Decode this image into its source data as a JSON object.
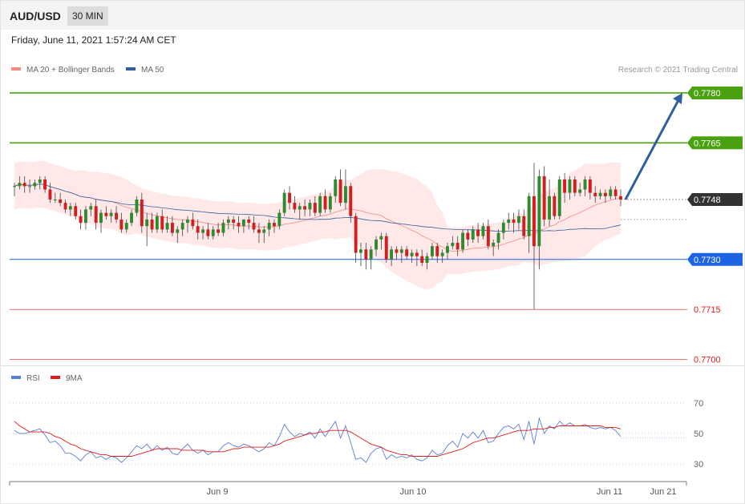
{
  "header": {
    "symbol": "AUD/USD",
    "timeframe": "30 MIN"
  },
  "datetime": "Friday, June 11, 2021 1:57:24 AM CET",
  "legend": {
    "ma20_label": "MA 20 + Bollinger Bands",
    "ma20_color": "#f28b82",
    "ma50_label": "MA 50",
    "ma50_color": "#34609e"
  },
  "credit": "Research © 2021 Trading Central",
  "rsi_legend": {
    "rsi_label": "RSI",
    "rsi_color": "#5b7fd6",
    "ma_label": "9MA",
    "ma_color": "#e11b1b"
  },
  "chart_data": [
    {
      "type": "candlestick",
      "panel": "price",
      "ylim": [
        0.7697,
        0.7786
      ],
      "levels": [
        {
          "value": 0.778,
          "label": "0.7780",
          "color": "#4aa10f",
          "style": "resistance"
        },
        {
          "value": 0.7765,
          "label": "0.7765",
          "color": "#4aa10f",
          "style": "resistance"
        },
        {
          "value": 0.7748,
          "label": "0.7748",
          "color": "#333333",
          "style": "last"
        },
        {
          "value": 0.773,
          "label": "0.7730",
          "color": "#1d63e4",
          "style": "pivot"
        },
        {
          "value": 0.7715,
          "label": "0.7715",
          "color": "#e31b1b",
          "style": "support"
        },
        {
          "value": 0.77,
          "label": "0.7700",
          "color": "#e31b1b",
          "style": "support"
        }
      ],
      "forecast_arrow": {
        "from": 0.7748,
        "to": 0.778,
        "color": "#2f5f9e"
      },
      "candles": [
        [
          0.7752,
          0.7753,
          0.7749,
          0.7752
        ],
        [
          0.7752,
          0.7755,
          0.7751,
          0.7753
        ],
        [
          0.7753,
          0.7755,
          0.775,
          0.7752
        ],
        [
          0.7752,
          0.7754,
          0.775,
          0.7752
        ],
        [
          0.7752,
          0.7754,
          0.7751,
          0.7753
        ],
        [
          0.7753,
          0.7755,
          0.7751,
          0.7754
        ],
        [
          0.7754,
          0.7755,
          0.775,
          0.7751
        ],
        [
          0.7751,
          0.7753,
          0.7747,
          0.7748
        ],
        [
          0.7748,
          0.775,
          0.7747,
          0.7748
        ],
        [
          0.7748,
          0.775,
          0.7746,
          0.7747
        ],
        [
          0.7747,
          0.7748,
          0.7744,
          0.7745
        ],
        [
          0.7745,
          0.7747,
          0.7743,
          0.7746
        ],
        [
          0.7746,
          0.7747,
          0.7742,
          0.7743
        ],
        [
          0.7743,
          0.7745,
          0.7739,
          0.7741
        ],
        [
          0.7741,
          0.7746,
          0.7739,
          0.7745
        ],
        [
          0.7745,
          0.7747,
          0.7743,
          0.7746
        ],
        [
          0.7746,
          0.7748,
          0.7739,
          0.7741
        ],
        [
          0.7741,
          0.7745,
          0.7738,
          0.7744
        ],
        [
          0.7744,
          0.7746,
          0.7742,
          0.7743
        ],
        [
          0.7743,
          0.7745,
          0.7741,
          0.7744
        ],
        [
          0.7744,
          0.7746,
          0.7741,
          0.7742
        ],
        [
          0.7742,
          0.7744,
          0.7738,
          0.7739
        ],
        [
          0.7739,
          0.7742,
          0.7738,
          0.7741
        ],
        [
          0.7741,
          0.7745,
          0.774,
          0.7744
        ],
        [
          0.7744,
          0.7749,
          0.7743,
          0.7748
        ],
        [
          0.7748,
          0.775,
          0.7738,
          0.774
        ],
        [
          0.774,
          0.7744,
          0.7734,
          0.7742
        ],
        [
          0.7742,
          0.7744,
          0.7738,
          0.7739
        ],
        [
          0.7739,
          0.7744,
          0.7738,
          0.7743
        ],
        [
          0.7743,
          0.7745,
          0.7738,
          0.7739
        ],
        [
          0.7739,
          0.7743,
          0.7738,
          0.7741
        ],
        [
          0.7741,
          0.7743,
          0.7737,
          0.7738
        ],
        [
          0.7738,
          0.774,
          0.7735,
          0.7739
        ],
        [
          0.7739,
          0.7742,
          0.7737,
          0.7741
        ],
        [
          0.7741,
          0.7743,
          0.7738,
          0.7742
        ],
        [
          0.7742,
          0.7744,
          0.7739,
          0.774
        ],
        [
          0.774,
          0.7742,
          0.7736,
          0.7738
        ],
        [
          0.7738,
          0.774,
          0.7736,
          0.7739
        ],
        [
          0.7739,
          0.7741,
          0.7736,
          0.7737
        ],
        [
          0.7737,
          0.774,
          0.7736,
          0.7739
        ],
        [
          0.7739,
          0.7741,
          0.7737,
          0.7738
        ],
        [
          0.7738,
          0.7742,
          0.7737,
          0.7741
        ],
        [
          0.7741,
          0.7743,
          0.7739,
          0.7742
        ],
        [
          0.7742,
          0.7743,
          0.7739,
          0.7741
        ],
        [
          0.7741,
          0.7743,
          0.7738,
          0.774
        ],
        [
          0.774,
          0.7742,
          0.7738,
          0.7742
        ],
        [
          0.7742,
          0.7743,
          0.7739,
          0.7741
        ],
        [
          0.7741,
          0.7743,
          0.7738,
          0.7739
        ],
        [
          0.7739,
          0.7741,
          0.7735,
          0.7738
        ],
        [
          0.7738,
          0.774,
          0.7735,
          0.7739
        ],
        [
          0.7739,
          0.7742,
          0.7737,
          0.7741
        ],
        [
          0.7741,
          0.7742,
          0.7738,
          0.774
        ],
        [
          0.774,
          0.7745,
          0.7739,
          0.7744
        ],
        [
          0.7744,
          0.7751,
          0.7743,
          0.775
        ],
        [
          0.775,
          0.7752,
          0.7745,
          0.7747
        ],
        [
          0.7747,
          0.7749,
          0.7744,
          0.7745
        ],
        [
          0.7745,
          0.7747,
          0.7742,
          0.7746
        ],
        [
          0.7746,
          0.7748,
          0.7743,
          0.7745
        ],
        [
          0.7745,
          0.7748,
          0.7743,
          0.7747
        ],
        [
          0.7747,
          0.7749,
          0.7743,
          0.7744
        ],
        [
          0.7744,
          0.775,
          0.7743,
          0.7749
        ],
        [
          0.7749,
          0.7751,
          0.7744,
          0.7745
        ],
        [
          0.7745,
          0.775,
          0.7744,
          0.7749
        ],
        [
          0.7749,
          0.7755,
          0.7747,
          0.7754
        ],
        [
          0.7754,
          0.7757,
          0.7746,
          0.7747
        ],
        [
          0.7747,
          0.7757,
          0.7745,
          0.7752
        ],
        [
          0.7752,
          0.7753,
          0.7741,
          0.7743
        ],
        [
          0.7743,
          0.7744,
          0.7729,
          0.7732
        ],
        [
          0.7732,
          0.7735,
          0.7728,
          0.7733
        ],
        [
          0.7733,
          0.7735,
          0.7727,
          0.773
        ],
        [
          0.773,
          0.7734,
          0.7727,
          0.7733
        ],
        [
          0.7733,
          0.7737,
          0.7731,
          0.7736
        ],
        [
          0.7736,
          0.7738,
          0.7733,
          0.7737
        ],
        [
          0.7737,
          0.7738,
          0.7729,
          0.773
        ],
        [
          0.773,
          0.7734,
          0.7728,
          0.7733
        ],
        [
          0.7733,
          0.7734,
          0.773,
          0.7732
        ],
        [
          0.7732,
          0.7734,
          0.7729,
          0.7733
        ],
        [
          0.7733,
          0.7734,
          0.773,
          0.7731
        ],
        [
          0.7731,
          0.7733,
          0.7729,
          0.7732
        ],
        [
          0.7732,
          0.7733,
          0.7728,
          0.7731
        ],
        [
          0.7731,
          0.7733,
          0.7728,
          0.7729
        ],
        [
          0.7729,
          0.7732,
          0.7727,
          0.7731
        ],
        [
          0.7731,
          0.7735,
          0.773,
          0.7734
        ],
        [
          0.7734,
          0.7735,
          0.7729,
          0.7731
        ],
        [
          0.7731,
          0.7733,
          0.7729,
          0.7732
        ],
        [
          0.7732,
          0.7735,
          0.773,
          0.7734
        ],
        [
          0.7734,
          0.7737,
          0.7733,
          0.7735
        ],
        [
          0.7735,
          0.7737,
          0.7731,
          0.7733
        ],
        [
          0.7733,
          0.7739,
          0.7732,
          0.7738
        ],
        [
          0.7738,
          0.7739,
          0.7734,
          0.7736
        ],
        [
          0.7736,
          0.774,
          0.7735,
          0.7739
        ],
        [
          0.7739,
          0.7741,
          0.7735,
          0.7737
        ],
        [
          0.7737,
          0.7741,
          0.7736,
          0.774
        ],
        [
          0.774,
          0.7742,
          0.7733,
          0.7734
        ],
        [
          0.7734,
          0.7736,
          0.7731,
          0.7735
        ],
        [
          0.7735,
          0.7739,
          0.7733,
          0.7738
        ],
        [
          0.7738,
          0.7742,
          0.7736,
          0.7741
        ],
        [
          0.7741,
          0.7744,
          0.7739,
          0.7742
        ],
        [
          0.7742,
          0.7744,
          0.7738,
          0.7741
        ],
        [
          0.7741,
          0.7745,
          0.7739,
          0.7743
        ],
        [
          0.7743,
          0.7745,
          0.7736,
          0.7737
        ],
        [
          0.7737,
          0.775,
          0.7732,
          0.7749
        ],
        [
          0.7749,
          0.7759,
          0.7715,
          0.7734
        ],
        [
          0.7734,
          0.7757,
          0.7727,
          0.7755
        ],
        [
          0.7755,
          0.7758,
          0.774,
          0.7742
        ],
        [
          0.7742,
          0.7754,
          0.774,
          0.7749
        ],
        [
          0.7749,
          0.775,
          0.7742,
          0.7743
        ],
        [
          0.7743,
          0.7755,
          0.7742,
          0.7754
        ],
        [
          0.7754,
          0.7756,
          0.7747,
          0.775
        ],
        [
          0.775,
          0.7755,
          0.7748,
          0.7754
        ],
        [
          0.7754,
          0.7755,
          0.7749,
          0.775
        ],
        [
          0.775,
          0.7753,
          0.7749,
          0.7751
        ],
        [
          0.7751,
          0.7755,
          0.7749,
          0.7754
        ],
        [
          0.7754,
          0.7755,
          0.7748,
          0.775
        ],
        [
          0.775,
          0.7752,
          0.7747,
          0.7749
        ],
        [
          0.7749,
          0.7751,
          0.7748,
          0.775
        ],
        [
          0.775,
          0.7751,
          0.7747,
          0.7749
        ],
        [
          0.7749,
          0.7752,
          0.7748,
          0.7751
        ],
        [
          0.7751,
          0.7752,
          0.7748,
          0.7749
        ],
        [
          0.7749,
          0.7751,
          0.7746,
          0.7748
        ]
      ]
    },
    {
      "type": "line",
      "panel": "rsi",
      "ylim": [
        20,
        80
      ],
      "yticks": [
        70,
        50,
        30
      ],
      "xticks": [
        "Jun 9",
        "Jun 10",
        "Jun 11",
        "Jun 21"
      ],
      "series": [
        {
          "name": "RSI",
          "values": [
            52,
            50,
            50,
            51,
            52,
            53,
            49,
            44,
            45,
            42,
            37,
            37,
            35,
            32,
            36,
            38,
            34,
            35,
            33,
            35,
            34,
            31,
            34,
            38,
            42,
            40,
            43,
            39,
            42,
            39,
            41,
            37,
            36,
            40,
            43,
            39,
            37,
            39,
            36,
            38,
            38,
            42,
            44,
            42,
            41,
            43,
            42,
            40,
            38,
            40,
            44,
            42,
            48,
            56,
            51,
            48,
            50,
            49,
            51,
            47,
            53,
            48,
            53,
            58,
            47,
            55,
            44,
            33,
            34,
            31,
            37,
            40,
            41,
            33,
            36,
            34,
            35,
            34,
            36,
            33,
            32,
            34,
            39,
            36,
            37,
            42,
            45,
            41,
            50,
            47,
            51,
            47,
            52,
            44,
            45,
            50,
            54,
            55,
            53,
            56,
            46,
            58,
            43,
            60,
            50,
            55,
            53,
            58,
            55,
            57,
            55,
            55,
            56,
            54,
            53,
            54,
            53,
            54,
            52,
            48
          ]
        },
        {
          "name": "9MA",
          "values": [
            58,
            55,
            53,
            51,
            51,
            51,
            51,
            50,
            48,
            47,
            45,
            43,
            42,
            40,
            39,
            38,
            37,
            36,
            36,
            35,
            35,
            35,
            35,
            35,
            36,
            37,
            38,
            39,
            40,
            40,
            40,
            40,
            40,
            39,
            39,
            39,
            39,
            39,
            38,
            38,
            38,
            38,
            39,
            40,
            40,
            41,
            41,
            41,
            41,
            41,
            41,
            42,
            43,
            45,
            46,
            47,
            48,
            49,
            50,
            50,
            51,
            51,
            52,
            52,
            52,
            52,
            51,
            49,
            47,
            45,
            43,
            42,
            41,
            39,
            38,
            37,
            36,
            36,
            35,
            35,
            35,
            35,
            35,
            35,
            36,
            37,
            38,
            39,
            40,
            42,
            44,
            45,
            46,
            47,
            47,
            48,
            49,
            50,
            51,
            52,
            52,
            52,
            53,
            53,
            53,
            54,
            54,
            55,
            55,
            55,
            55,
            55,
            55,
            55,
            55,
            55,
            54,
            54,
            54,
            53
          ]
        }
      ]
    }
  ]
}
